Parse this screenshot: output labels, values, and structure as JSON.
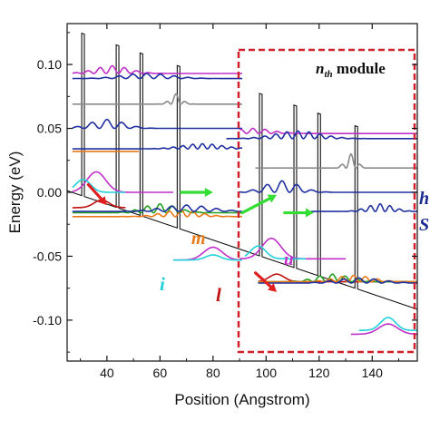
{
  "chart_data": {
    "type": "line",
    "title": "",
    "xlabel": "Position (Angstrom)",
    "ylabel": "Energy (eV)",
    "xlim": [
      25,
      157
    ],
    "ylim": [
      -0.132,
      0.132
    ],
    "xticks": [
      40,
      60,
      80,
      100,
      120,
      140
    ],
    "xtick_labels": [
      "40",
      "60",
      "80",
      "100",
      "120",
      "140"
    ],
    "yticks": [
      -0.1,
      -0.05,
      0.0,
      0.05,
      0.1
    ],
    "ytick_labels": [
      "-0.10",
      "-0.05",
      "0.00",
      "0.05",
      "0.10"
    ],
    "grid": false,
    "module_label": "n",
    "module_label_sub": "th",
    "module_label_suffix": " module",
    "level_labels": [
      "m",
      "i",
      "u",
      "l"
    ],
    "edge_labels": [
      "h",
      "S"
    ],
    "colors": {
      "band": "#111111",
      "module_box": "#d0202a",
      "arrow_red": "#e02020",
      "arrow_green": "#33dd33",
      "label_m": "#e87a18",
      "label_i": "#22d0d8",
      "label_u": "#c030c8",
      "label_l": "#c01010",
      "label_h": "#1a2a90",
      "label_S": "#1a2a90"
    },
    "band_profile": {
      "field_slope_eV_per_A": -0.000703,
      "barrier_height_eV": 0.127,
      "period_A": 67,
      "reference_x": 61.0,
      "reference_energy": -0.024,
      "barriers_A": [
        [
          30.5,
          31.5
        ],
        [
          43.5,
          44.5
        ],
        [
          52.5,
          53.5
        ],
        [
          66.5,
          67.5
        ]
      ]
    },
    "states": [
      {
        "name": "upper-1",
        "color": "#c030c8",
        "x0": 27,
        "x1": 91,
        "energy": 0.093,
        "amp": 0.006,
        "center": 42,
        "width": 9,
        "k": 0.68
      },
      {
        "name": "upper-2",
        "color": "#2030a0",
        "x0": 27,
        "x1": 91,
        "energy": 0.089,
        "amp": 0.004,
        "center": 55,
        "width": 13,
        "k": 0.6
      },
      {
        "name": "upper-3",
        "color": "#8a8a8a",
        "x0": 27,
        "x1": 91,
        "energy": 0.069,
        "amp": 0.008,
        "center": 66,
        "width": 3,
        "k": 0.85
      },
      {
        "name": "upper-4",
        "color": "#2030a0",
        "x0": 27,
        "x1": 91,
        "energy": 0.05,
        "amp": 0.007,
        "center": 40,
        "width": 9,
        "k": 0.55
      },
      {
        "name": "injector-high",
        "color": "#e87a18",
        "x0": 27,
        "x1": 52,
        "energy": 0.032,
        "amp": 0,
        "center": 40,
        "width": 8,
        "k": 0.5
      },
      {
        "name": "injector-mid",
        "color": "#2030a0",
        "x0": 27,
        "x1": 91,
        "energy": 0.034,
        "amp": 0.004,
        "center": 76,
        "width": 11,
        "k": 0.85
      },
      {
        "name": "u-prev",
        "color": "#c030c8",
        "x0": 27,
        "x1": 65,
        "energy": 0.0,
        "amp": 0.016,
        "center": 36,
        "width": 5,
        "k": 0.0
      },
      {
        "name": "cyan-prev",
        "color": "#22d0d8",
        "x0": 27,
        "x1": 47,
        "energy": 0.0,
        "amp": 0.01,
        "center": 31,
        "width": 4,
        "k": 0.0
      },
      {
        "name": "l-prev",
        "color": "#c01010",
        "x0": 27,
        "x1": 47,
        "energy": -0.012,
        "amp": 0.006,
        "center": 38,
        "width": 4,
        "k": 0.0
      },
      {
        "name": "g-prev",
        "color": "#22a020",
        "x0": 27,
        "x1": 91,
        "energy": -0.016,
        "amp": 0.007,
        "center": 60,
        "width": 9,
        "k": 0.65
      },
      {
        "name": "m-prev",
        "color": "#e87a18",
        "x0": 27,
        "x1": 91,
        "energy": -0.019,
        "amp": 0.005,
        "center": 68,
        "width": 10,
        "k": 0.7
      },
      {
        "name": "b-prev",
        "color": "#2030a0",
        "x0": 27,
        "x1": 91,
        "energy": -0.015,
        "amp": 0.005,
        "center": 70,
        "width": 13,
        "k": 0.55
      },
      {
        "name": "i-state",
        "color": "#c030c8",
        "x0": 65,
        "x1": 91,
        "energy": -0.053,
        "amp": 0.01,
        "center": 80,
        "width": 5,
        "k": 0.0
      },
      {
        "name": "i-cyan",
        "color": "#22d0d8",
        "x0": 65,
        "x1": 91,
        "energy": -0.053,
        "amp": 0.004,
        "center": 80,
        "width": 4,
        "k": 0.0
      },
      {
        "name": "upper-1-n",
        "color": "#c030c8",
        "x0": 90,
        "x1": 157,
        "energy": 0.046,
        "amp": 0.004,
        "center": 95,
        "width": 10,
        "k": 0.68
      },
      {
        "name": "upper-2-n",
        "color": "#2030a0",
        "x0": 85,
        "x1": 157,
        "energy": 0.042,
        "amp": 0.006,
        "center": 112,
        "width": 12,
        "k": 0.75
      },
      {
        "name": "upper-3-n",
        "color": "#8a8a8a",
        "x0": 96,
        "x1": 157,
        "energy": 0.019,
        "amp": 0.011,
        "center": 132,
        "width": 3,
        "k": 0.85
      },
      {
        "name": "upper-4-n",
        "color": "#2030a0",
        "x0": 90,
        "x1": 157,
        "energy": 0.0,
        "amp": 0.009,
        "center": 106,
        "width": 9,
        "k": 0.55
      },
      {
        "name": "h-state",
        "color": "#2030a0",
        "x0": 117,
        "x1": 157,
        "energy": -0.015,
        "amp": 0.006,
        "center": 143,
        "width": 7,
        "k": 0.85
      },
      {
        "name": "u-state",
        "color": "#c030c8",
        "x0": 90,
        "x1": 130,
        "energy": -0.052,
        "amp": 0.016,
        "center": 102,
        "width": 5,
        "k": 0.0
      },
      {
        "name": "u-cyan",
        "color": "#22d0d8",
        "x0": 92,
        "x1": 115,
        "energy": -0.052,
        "amp": 0.01,
        "center": 97,
        "width": 4,
        "k": 0.0
      },
      {
        "name": "l-state",
        "color": "#c01010",
        "x0": 97,
        "x1": 157,
        "energy": -0.07,
        "amp": 0.006,
        "center": 104,
        "width": 4,
        "k": 0.0
      },
      {
        "name": "g-state",
        "color": "#22a020",
        "x0": 97,
        "x1": 157,
        "energy": -0.07,
        "amp": 0.006,
        "center": 125,
        "width": 9,
        "k": 0.65
      },
      {
        "name": "m-state",
        "color": "#e87a18",
        "x0": 97,
        "x1": 157,
        "energy": -0.07,
        "amp": 0.005,
        "center": 133,
        "width": 10,
        "k": 0.7
      },
      {
        "name": "b-state",
        "color": "#2030a0",
        "x0": 97,
        "x1": 157,
        "energy": -0.071,
        "amp": 0.004,
        "center": 135,
        "width": 12,
        "k": 0.55
      },
      {
        "name": "bottom-mag",
        "color": "#c030c8",
        "x0": 132,
        "x1": 157,
        "energy": -0.111,
        "amp": 0.008,
        "center": 146,
        "width": 5,
        "k": 0.0
      },
      {
        "name": "bottom-cyan",
        "color": "#22d0d8",
        "x0": 135,
        "x1": 157,
        "energy": -0.108,
        "amp": 0.01,
        "center": 146,
        "width": 4,
        "k": 0.0
      }
    ],
    "arrows": [
      {
        "color": "#e02020",
        "from": [
          33,
          0.006
        ],
        "to": [
          40,
          -0.01
        ]
      },
      {
        "color": "#33dd33",
        "from": [
          68,
          0.0
        ],
        "to": [
          80,
          0.0
        ]
      },
      {
        "color": "#33dd33",
        "from": [
          91,
          -0.016
        ],
        "to": [
          104,
          -0.002
        ]
      },
      {
        "color": "#33dd33",
        "from": [
          107,
          -0.016
        ],
        "to": [
          118,
          -0.016
        ]
      },
      {
        "color": "#e02020",
        "from": [
          96,
          -0.063
        ],
        "to": [
          104,
          -0.078
        ]
      }
    ]
  }
}
